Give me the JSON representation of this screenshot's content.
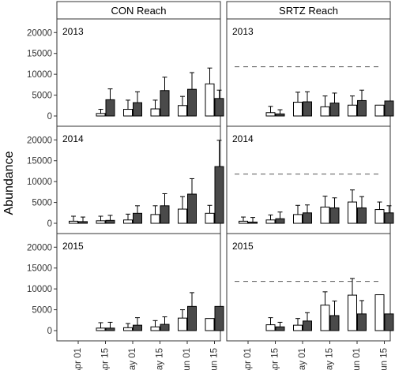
{
  "figure": {
    "ylabel": "Abundance",
    "y_ticks": [
      "0",
      "5000",
      "10000",
      "15000",
      "20000"
    ],
    "x_ticks": [
      "Apr 01",
      "Apr 15",
      "May 01",
      "May 15",
      "Jun 01",
      "Jun 15"
    ],
    "columns": [
      "CON Reach",
      "SRTZ Reach"
    ],
    "rows": [
      "2013",
      "2014",
      "2015"
    ],
    "colors": {
      "white_bar": "#ffffff",
      "dark_bar": "#4a4a4a",
      "strip_bg": "#ffffff",
      "frame": "#333333",
      "reference_line": "#555555"
    }
  },
  "chart_data": {
    "type": "bar",
    "categories": [
      "Apr 01",
      "Apr 15",
      "May 01",
      "May 15",
      "Jun 01",
      "Jun 15"
    ],
    "ylim": [
      0,
      21000
    ],
    "panels": [
      {
        "facet_col": "CON Reach",
        "facet_row": "2013",
        "reference_line": null,
        "white": [
          null,
          600,
          1600,
          1700,
          2500,
          7700
        ],
        "white_err": [
          null,
          1600,
          3800,
          3800,
          4700,
          11500
        ],
        "dark": [
          null,
          3900,
          3200,
          6100,
          6400,
          4200
        ],
        "dark_err": [
          null,
          6500,
          5800,
          9300,
          10400,
          6200
        ]
      },
      {
        "facet_col": "SRTZ Reach",
        "facet_row": "2013",
        "reference_line": 11800,
        "white": [
          null,
          800,
          3300,
          2200,
          2600,
          2600
        ],
        "white_err": [
          null,
          2300,
          5700,
          4800,
          4800,
          null
        ],
        "dark": [
          null,
          500,
          3400,
          3100,
          3700,
          3600
        ],
        "dark_err": [
          null,
          1500,
          5800,
          5500,
          6200,
          null
        ]
      },
      {
        "facet_col": "CON Reach",
        "facet_row": "2014",
        "reference_line": null,
        "white": [
          500,
          600,
          800,
          2100,
          3400,
          2400
        ],
        "white_err": [
          1700,
          1700,
          2200,
          4200,
          6400,
          4300
        ],
        "dark": [
          400,
          700,
          2400,
          4200,
          7000,
          13600
        ],
        "dark_err": [
          1500,
          1900,
          4200,
          7100,
          10700,
          19900
        ]
      },
      {
        "facet_col": "SRTZ Reach",
        "facet_row": "2014",
        "reference_line": 11800,
        "white": [
          500,
          800,
          2100,
          3900,
          5100,
          3300
        ],
        "white_err": [
          1500,
          2000,
          4300,
          6500,
          8000,
          5100
        ],
        "dark": [
          300,
          1100,
          2500,
          3700,
          3700,
          2500
        ],
        "dark_err": [
          1400,
          2700,
          4400,
          6100,
          6400,
          4200
        ]
      },
      {
        "facet_col": "CON Reach",
        "facet_row": "2015",
        "reference_line": null,
        "white": [
          null,
          600,
          700,
          900,
          3000,
          2900
        ],
        "white_err": [
          null,
          1900,
          1700,
          2400,
          5000,
          null
        ],
        "dark": [
          null,
          600,
          1300,
          1500,
          5800,
          5800
        ],
        "dark_err": [
          null,
          2000,
          3100,
          3300,
          9100,
          null
        ]
      },
      {
        "facet_col": "SRTZ Reach",
        "facet_row": "2015",
        "reference_line": 11800,
        "white": [
          null,
          1400,
          1300,
          6100,
          8500,
          8600
        ],
        "white_err": [
          null,
          3100,
          2900,
          9300,
          12500,
          null
        ],
        "dark": [
          null,
          900,
          2300,
          3600,
          4000,
          4000
        ],
        "dark_err": [
          null,
          2000,
          4300,
          7100,
          7200,
          null
        ]
      }
    ]
  }
}
